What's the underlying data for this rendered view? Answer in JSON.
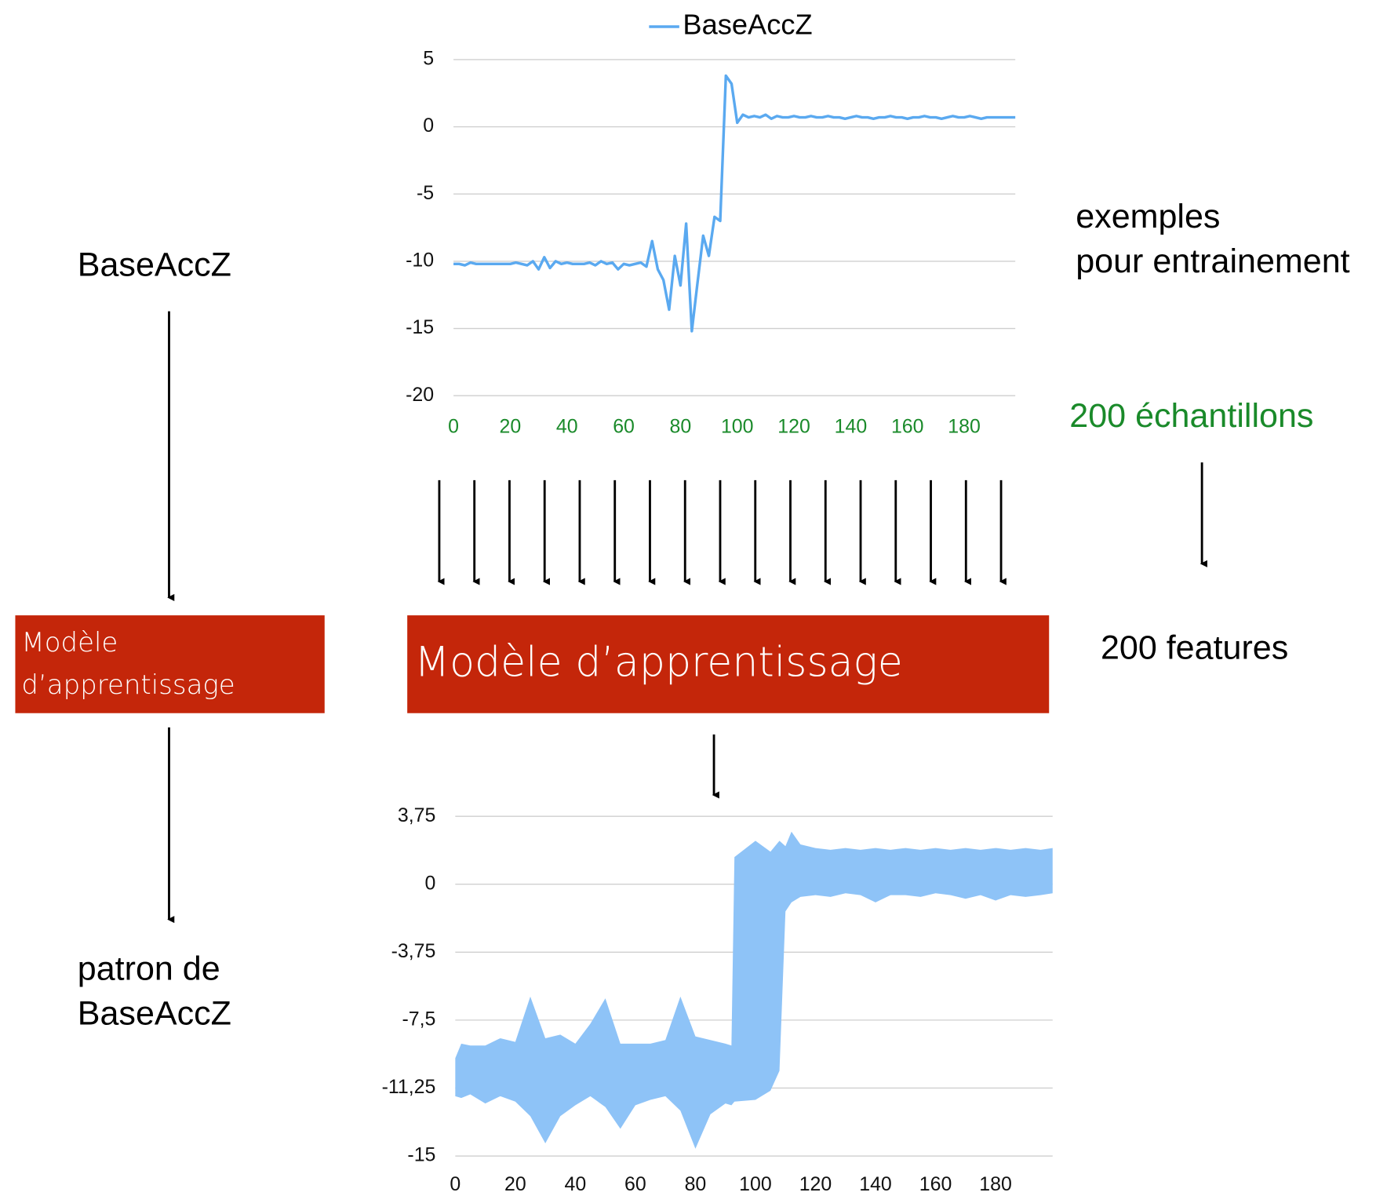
{
  "left": {
    "input": "BaseAccZ",
    "model_lines": [
      "Modèle",
      "d’apprentissage"
    ],
    "output_lines": [
      "patron de",
      "BaseAccZ"
    ]
  },
  "center": {
    "model": "Modèle d’apprentissage"
  },
  "right": {
    "examples_lines": [
      "exemples",
      "pour entrainement"
    ],
    "samples": "200 échantillons",
    "features": "200 features"
  },
  "chart_data": [
    {
      "type": "line",
      "legend": "top",
      "xlim": [
        0,
        198
      ],
      "xticks": [
        0,
        20,
        40,
        60,
        80,
        100,
        120,
        140,
        160,
        180
      ],
      "xtick_color": "#1a8a2a",
      "ylim": [
        -20,
        5
      ],
      "yticks": [
        -20,
        -15,
        -10,
        -5,
        0,
        5
      ],
      "grid": true,
      "x": [
        0,
        2,
        4,
        6,
        8,
        10,
        12,
        14,
        16,
        18,
        20,
        22,
        24,
        26,
        28,
        30,
        32,
        34,
        36,
        38,
        40,
        42,
        44,
        46,
        48,
        50,
        52,
        54,
        56,
        58,
        60,
        62,
        64,
        66,
        68,
        70,
        72,
        74,
        76,
        78,
        80,
        82,
        84,
        86,
        88,
        90,
        92,
        94,
        96,
        98,
        100,
        102,
        104,
        106,
        108,
        110,
        112,
        114,
        116,
        118,
        120,
        122,
        124,
        126,
        128,
        130,
        132,
        134,
        136,
        138,
        140,
        142,
        144,
        146,
        148,
        150,
        152,
        154,
        156,
        158,
        160,
        162,
        164,
        166,
        168,
        170,
        172,
        174,
        176,
        178,
        180,
        182,
        184,
        186,
        188,
        190,
        192,
        194,
        196,
        198
      ],
      "series": [
        {
          "name": "BaseAccZ",
          "color": "#5aa9f0",
          "values": [
            -10.2,
            -10.2,
            -10.3,
            -10.1,
            -10.2,
            -10.2,
            -10.2,
            -10.2,
            -10.2,
            -10.2,
            -10.2,
            -10.1,
            -10.2,
            -10.3,
            -10.0,
            -10.6,
            -9.7,
            -10.5,
            -10.0,
            -10.2,
            -10.1,
            -10.2,
            -10.2,
            -10.2,
            -10.1,
            -10.3,
            -10.0,
            -10.2,
            -10.1,
            -10.6,
            -10.2,
            -10.3,
            -10.2,
            -10.1,
            -10.4,
            -8.5,
            -10.6,
            -11.4,
            -13.6,
            -9.6,
            -11.8,
            -7.2,
            -15.2,
            -11.6,
            -8.1,
            -9.6,
            -6.7,
            -7.0,
            3.8,
            3.2,
            0.3,
            0.9,
            0.7,
            0.8,
            0.7,
            0.9,
            0.6,
            0.8,
            0.7,
            0.7,
            0.8,
            0.7,
            0.7,
            0.8,
            0.7,
            0.7,
            0.8,
            0.7,
            0.7,
            0.6,
            0.7,
            0.8,
            0.7,
            0.7,
            0.6,
            0.7,
            0.7,
            0.8,
            0.7,
            0.7,
            0.6,
            0.7,
            0.7,
            0.8,
            0.7,
            0.7,
            0.6,
            0.7,
            0.8,
            0.7,
            0.7,
            0.8,
            0.7,
            0.6,
            0.7,
            0.7,
            0.7,
            0.7,
            0.7,
            0.7
          ]
        }
      ]
    },
    {
      "type": "range-area",
      "xlim": [
        0,
        199
      ],
      "xticks": [
        0,
        20,
        40,
        60,
        80,
        100,
        120,
        140,
        160,
        180
      ],
      "ylim": [
        -15,
        3.75
      ],
      "yticks": [
        -15,
        {
          "value": -11.25,
          "label": "-11,25"
        },
        {
          "value": -7.5,
          "label": "-7,5"
        },
        {
          "value": -3.75,
          "label": "-3,75"
        },
        0,
        {
          "value": 3.75,
          "label": "3,75"
        }
      ],
      "grid": true,
      "color": "#8ec3f7",
      "x": [
        0,
        2,
        5,
        10,
        15,
        20,
        25,
        30,
        35,
        40,
        45,
        50,
        55,
        60,
        65,
        70,
        75,
        80,
        85,
        90,
        92,
        93,
        100,
        105,
        108,
        110,
        112,
        115,
        120,
        125,
        130,
        135,
        140,
        145,
        150,
        155,
        160,
        165,
        170,
        175,
        180,
        185,
        190,
        195,
        199
      ],
      "upper": [
        -9.6,
        -8.8,
        -8.9,
        -8.9,
        -8.5,
        -8.7,
        -6.2,
        -8.5,
        -8.3,
        -8.8,
        -7.7,
        -6.3,
        -8.8,
        -8.8,
        -8.8,
        -8.6,
        -6.2,
        -8.4,
        -8.6,
        -8.8,
        -8.9,
        1.5,
        2.4,
        1.8,
        2.4,
        2.1,
        2.9,
        2.2,
        2.0,
        1.9,
        2.0,
        1.9,
        2.0,
        1.9,
        2.0,
        1.9,
        2.0,
        1.9,
        2.0,
        1.9,
        2.0,
        1.9,
        2.0,
        1.9,
        2.0
      ],
      "lower": [
        -11.7,
        -11.8,
        -11.6,
        -12.1,
        -11.7,
        -12.0,
        -12.8,
        -14.3,
        -12.8,
        -12.2,
        -11.7,
        -12.3,
        -13.5,
        -12.2,
        -11.9,
        -11.7,
        -12.5,
        -14.6,
        -12.7,
        -12.1,
        -12.2,
        -12.0,
        -11.9,
        -11.4,
        -10.3,
        -1.5,
        -1.0,
        -0.7,
        -0.6,
        -0.7,
        -0.5,
        -0.6,
        -1.0,
        -0.6,
        -0.6,
        -0.7,
        -0.5,
        -0.6,
        -0.8,
        -0.6,
        -0.9,
        -0.6,
        -0.7,
        -0.6,
        -0.5
      ]
    }
  ]
}
